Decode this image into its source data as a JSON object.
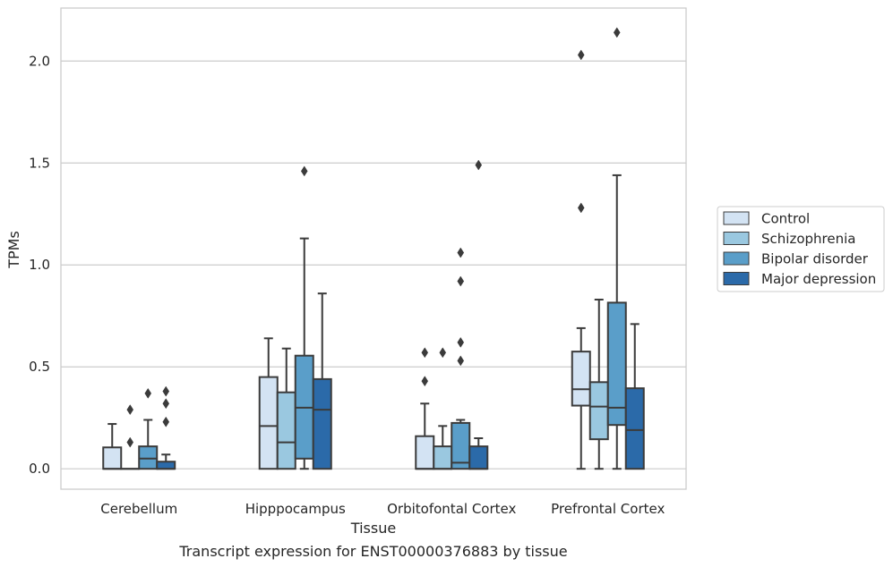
{
  "chart_data": {
    "type": "box",
    "xlabel": "Tissue",
    "ylabel": "TPMs",
    "caption": "Transcript expression for ENST00000376883 by tissue",
    "ylim": [
      -0.1,
      2.26
    ],
    "yticks": [
      0.0,
      0.5,
      1.0,
      1.5,
      2.0
    ],
    "ytick_labels": [
      "0.0",
      "0.5",
      "1.0",
      "1.5",
      "2.0"
    ],
    "grid": "horizontal",
    "legend_position": "right",
    "categories": [
      "Cerebellum",
      "Hipppocampus",
      "Orbitofontal Cortex",
      "Prefrontal Cortex"
    ],
    "series": [
      {
        "name": "Control",
        "color": "#d3e3f3",
        "boxes": [
          {
            "whislo": 0.0,
            "q1": 0.0,
            "med": 0.0,
            "q3": 0.105,
            "whishi": 0.22,
            "fliers": []
          },
          {
            "whislo": 0.0,
            "q1": 0.0,
            "med": 0.21,
            "q3": 0.45,
            "whishi": 0.64,
            "fliers": []
          },
          {
            "whislo": 0.0,
            "q1": 0.0,
            "med": 0.0,
            "q3": 0.16,
            "whishi": 0.32,
            "fliers": [
              0.43,
              0.57
            ]
          },
          {
            "whislo": 0.0,
            "q1": 0.31,
            "med": 0.39,
            "q3": 0.575,
            "whishi": 0.69,
            "fliers": [
              1.28,
              2.03
            ]
          }
        ]
      },
      {
        "name": "Schizophrenia",
        "color": "#9ac8e0",
        "boxes": [
          {
            "whislo": 0.0,
            "q1": 0.0,
            "med": 0.0,
            "q3": 0.0,
            "whishi": 0.0,
            "fliers": [
              0.13,
              0.29
            ]
          },
          {
            "whislo": 0.0,
            "q1": 0.0,
            "med": 0.13,
            "q3": 0.375,
            "whishi": 0.59,
            "fliers": []
          },
          {
            "whislo": 0.0,
            "q1": 0.0,
            "med": 0.0,
            "q3": 0.11,
            "whishi": 0.21,
            "fliers": [
              0.57
            ]
          },
          {
            "whislo": 0.0,
            "q1": 0.145,
            "med": 0.305,
            "q3": 0.425,
            "whishi": 0.83,
            "fliers": []
          }
        ]
      },
      {
        "name": "Bipolar disorder",
        "color": "#5a9ec9",
        "boxes": [
          {
            "whislo": 0.0,
            "q1": 0.0,
            "med": 0.05,
            "q3": 0.11,
            "whishi": 0.24,
            "fliers": [
              0.37
            ]
          },
          {
            "whislo": 0.0,
            "q1": 0.05,
            "med": 0.3,
            "q3": 0.555,
            "whishi": 1.13,
            "fliers": [
              1.46
            ]
          },
          {
            "whislo": 0.0,
            "q1": 0.0,
            "med": 0.03,
            "q3": 0.225,
            "whishi": 0.24,
            "fliers": [
              0.53,
              0.62,
              0.92,
              1.06
            ]
          },
          {
            "whislo": 0.0,
            "q1": 0.215,
            "med": 0.3,
            "q3": 0.815,
            "whishi": 1.44,
            "fliers": [
              2.14
            ]
          }
        ]
      },
      {
        "name": "Major depression",
        "color": "#2b6aa9",
        "boxes": [
          {
            "whislo": 0.0,
            "q1": 0.0,
            "med": 0.0,
            "q3": 0.035,
            "whishi": 0.07,
            "fliers": [
              0.23,
              0.32,
              0.38
            ]
          },
          {
            "whislo": 0.0,
            "q1": 0.0,
            "med": 0.29,
            "q3": 0.44,
            "whishi": 0.86,
            "fliers": []
          },
          {
            "whislo": 0.0,
            "q1": 0.0,
            "med": 0.0,
            "q3": 0.11,
            "whishi": 0.15,
            "fliers": [
              1.49
            ]
          },
          {
            "whislo": 0.0,
            "q1": 0.0,
            "med": 0.19,
            "q3": 0.395,
            "whishi": 0.71,
            "fliers": []
          }
        ]
      }
    ]
  }
}
